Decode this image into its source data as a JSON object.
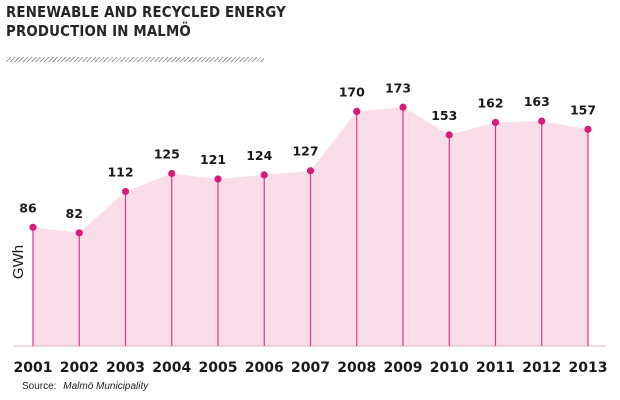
{
  "title_line1": "RENEWABLE AND RECYCLED ENERGY",
  "title_line2": "PRODUCTION IN MALMÖ",
  "source_label": "Source:",
  "source_name": "Malmö Municipality",
  "colors": {
    "fill": "#f9dde8",
    "line": "#e1338f",
    "point": "#d81b7a",
    "text": "#1a1a1a"
  },
  "chart_data": {
    "type": "area",
    "title": "RENEWABLE AND RECYCLED ENERGY PRODUCTION IN MALMÖ",
    "xlabel": "",
    "ylabel": "GWh",
    "categories": [
      "2001",
      "2002",
      "2003",
      "2004",
      "2005",
      "2006",
      "2007",
      "2008",
      "2009",
      "2010",
      "2011",
      "2012",
      "2013"
    ],
    "values": [
      86,
      82,
      112,
      125,
      121,
      124,
      127,
      170,
      173,
      153,
      162,
      163,
      157
    ],
    "ylim": [
      0,
      173
    ],
    "grid": false,
    "legend": "none",
    "data_labels": true
  }
}
